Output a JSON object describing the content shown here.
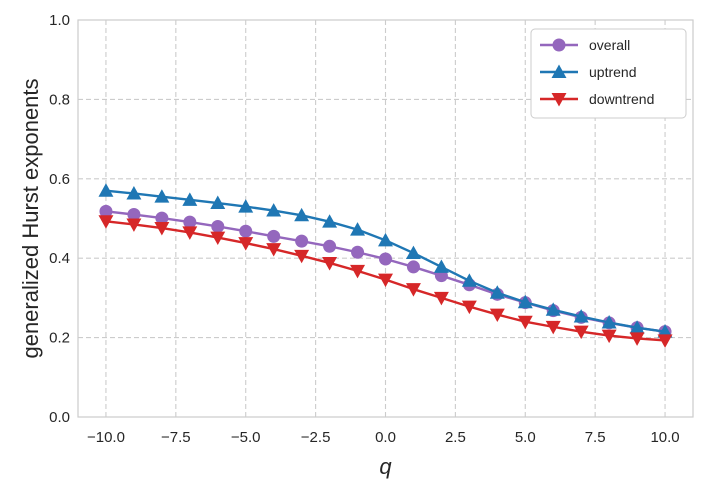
{
  "chart_data": {
    "type": "line",
    "title": "",
    "xlabel": "q",
    "ylabel": "generalized Hurst exponents",
    "xlim": [
      -11,
      11
    ],
    "ylim": [
      0.0,
      1.0
    ],
    "xticks": [
      -10,
      -7.5,
      -5,
      -2.5,
      0,
      2.5,
      5,
      7.5,
      10
    ],
    "xtick_labels": [
      "−10.0",
      "−7.5",
      "−5.0",
      "−2.5",
      "0.0",
      "2.5",
      "5.0",
      "7.5",
      "10.0"
    ],
    "yticks": [
      0.0,
      0.2,
      0.4,
      0.6,
      0.8,
      1.0
    ],
    "ytick_labels": [
      "0.0",
      "0.2",
      "0.4",
      "0.6",
      "0.8",
      "1.0"
    ],
    "grid": true,
    "legend_position": "top-right",
    "x": [
      -10,
      -9,
      -8,
      -7,
      -6,
      -5,
      -4,
      -3,
      -2,
      -1,
      0,
      1,
      2,
      3,
      4,
      5,
      6,
      7,
      8,
      9,
      10
    ],
    "series": [
      {
        "name": "overall",
        "color": "#9467bd",
        "marker": "circle",
        "values": [
          0.518,
          0.51,
          0.501,
          0.491,
          0.48,
          0.468,
          0.455,
          0.443,
          0.43,
          0.415,
          0.398,
          0.378,
          0.356,
          0.333,
          0.309,
          0.288,
          0.268,
          0.251,
          0.237,
          0.225,
          0.215
        ]
      },
      {
        "name": "uptrend",
        "color": "#1f77b4",
        "marker": "triangle-up",
        "values": [
          0.57,
          0.563,
          0.555,
          0.547,
          0.539,
          0.53,
          0.52,
          0.508,
          0.492,
          0.472,
          0.445,
          0.413,
          0.378,
          0.343,
          0.313,
          0.289,
          0.27,
          0.253,
          0.238,
          0.225,
          0.215
        ]
      },
      {
        "name": "downtrend",
        "color": "#d62728",
        "marker": "triangle-down",
        "values": [
          0.493,
          0.485,
          0.476,
          0.465,
          0.452,
          0.438,
          0.423,
          0.406,
          0.388,
          0.368,
          0.346,
          0.322,
          0.3,
          0.278,
          0.258,
          0.24,
          0.227,
          0.215,
          0.205,
          0.198,
          0.193
        ]
      }
    ]
  }
}
